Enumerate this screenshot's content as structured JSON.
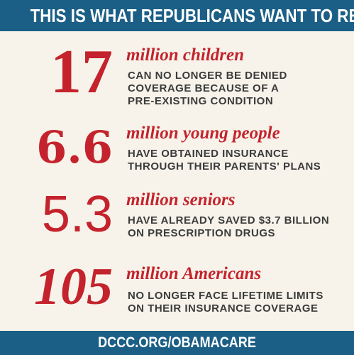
{
  "header": {
    "title": "THIS IS WHAT REPUBLICANS WANT TO REPEAL"
  },
  "stats": [
    {
      "number": "17",
      "lead": "million children",
      "lines": [
        "CAN NO LONGER BE DENIED",
        "COVERAGE BECAUSE OF A",
        "PRE-EXISTING CONDITION"
      ]
    },
    {
      "number": "6.6",
      "lead": "million young people",
      "lines": [
        "HAVE OBTAINED INSURANCE",
        "THROUGH THEIR PARENTS' PLANS"
      ]
    },
    {
      "number": "5.3",
      "lead": "million seniors",
      "lines": [
        "HAVE ALREADY SAVED $3.7 BILLION",
        "ON PRESCRIPTION DRUGS"
      ]
    },
    {
      "number": "105",
      "lead": "million Americans",
      "lines": [
        "NO LONGER FACE LIFETIME LIMITS",
        "ON THEIR INSURANCE COVERAGE"
      ]
    }
  ],
  "footer": {
    "url": "DCCC.ORG/OBAMACARE"
  },
  "colors": {
    "accent": "#c4232d",
    "banner": "#1b5f86",
    "background": "#f7f3ea",
    "text": "#3b3b3b"
  }
}
